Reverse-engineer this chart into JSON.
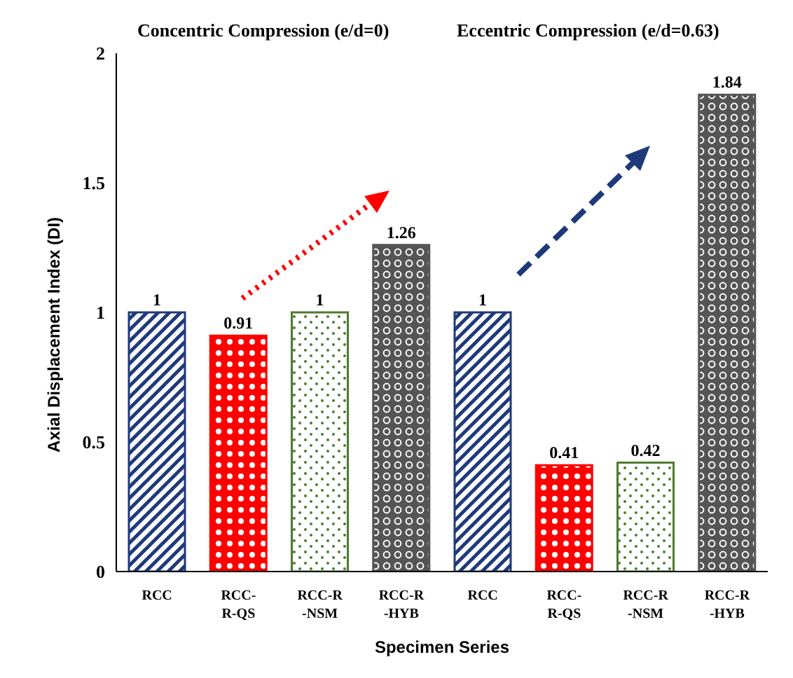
{
  "chart_data": {
    "type": "bar",
    "xlabel": "Specimen Series",
    "ylabel": "Axial  Displacement Index (DI)",
    "categories": [
      "RCC",
      "RCC-R-QS",
      "RCC-R-NSM",
      "RCC-R-HYB",
      "RCC",
      "RCC-R-QS",
      "RCC-R-NSM",
      "RCC-R-HYB"
    ],
    "values": [
      1,
      0.91,
      1,
      1.26,
      1,
      0.41,
      0.42,
      1.84
    ],
    "colors": [
      "#1f3a7a",
      "#ff0000",
      "#4e7a2e",
      "#555555",
      "#1f3a7a",
      "#ff0000",
      "#4e7a2e",
      "#555555"
    ],
    "ylim": [
      0,
      2
    ],
    "yticks": [
      0,
      0.5,
      1,
      1.5,
      2
    ],
    "grid": false,
    "legend": false,
    "data_labels": true,
    "annotations": [
      "Concentric Compression (e/d=0)",
      "Eccentric Compression (e/d=0.63)"
    ]
  }
}
